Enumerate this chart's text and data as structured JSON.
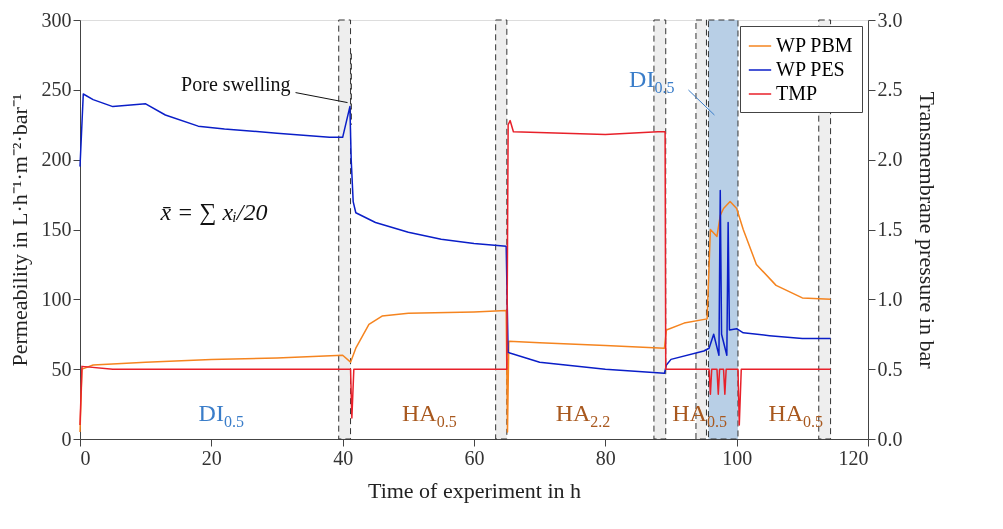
{
  "chart_data": {
    "type": "line",
    "xlabel": "Time of experiment in h",
    "ylabel": "Permeability in L·h⁻¹·m⁻²·bar⁻¹",
    "y2label": "Transmembrane pressure in bar",
    "xlim": [
      0,
      120
    ],
    "xticks": [
      0,
      20,
      40,
      60,
      80,
      100,
      120
    ],
    "ylim": [
      0,
      300
    ],
    "yticks": [
      0,
      50,
      100,
      150,
      200,
      250,
      300
    ],
    "y2lim": [
      0,
      3
    ],
    "y2ticks": [
      {
        "value": 0,
        "label": "0.0"
      },
      {
        "value": 0.5,
        "label": "0.5"
      },
      {
        "value": 1,
        "label": "1.0"
      },
      {
        "value": 1.5,
        "label": "1.5"
      },
      {
        "value": 2,
        "label": "2.0"
      },
      {
        "value": 2.5,
        "label": "2.5"
      },
      {
        "value": 3,
        "label": "3.0"
      }
    ],
    "grid": false,
    "legend": "top right",
    "line_style": "solid",
    "marker": "none",
    "series": [
      {
        "name": "WP PBM",
        "color": "#f5841f",
        "x": [
          0,
          0.3,
          2,
          10,
          20,
          30,
          40,
          41.2,
          42,
          44,
          46,
          50,
          60,
          64.9,
          65.1,
          65.3,
          70,
          80,
          89,
          89.3,
          92,
          95.5,
          96,
          97,
          97.5,
          98,
          99,
          100,
          101,
          103,
          106,
          110,
          114.3
        ],
        "values": [
          5,
          50,
          53,
          55,
          57,
          58,
          60,
          55,
          65,
          82,
          88,
          90,
          91,
          92,
          5,
          70,
          69,
          67,
          65,
          78,
          83,
          86,
          150,
          145,
          160,
          165,
          170,
          165,
          150,
          125,
          110,
          101,
          100
        ]
      },
      {
        "name": "WP PES",
        "color": "#0a1ec8",
        "x": [
          0,
          0.5,
          2,
          5,
          10,
          13,
          18,
          22,
          30,
          38,
          40,
          41.1,
          41.3,
          41.6,
          42,
          45,
          50,
          55,
          60,
          64.9,
          65.2,
          70,
          80,
          89,
          89.3,
          90,
          95,
          95.8,
          96.5,
          97.3,
          97.5,
          97.7,
          98.5,
          98.7,
          98.9,
          100,
          101,
          105,
          110,
          114.3
        ],
        "values": [
          195,
          247,
          243,
          238,
          240,
          232,
          224,
          222,
          219,
          216,
          216,
          238,
          200,
          170,
          162,
          155,
          148,
          143,
          140,
          138,
          62,
          55,
          50,
          47,
          53,
          57,
          63,
          65,
          75,
          60,
          178,
          75,
          60,
          155,
          78,
          79,
          76,
          74,
          72,
          72
        ]
      },
      {
        "name": "TMP",
        "color": "#e8202a",
        "axis": "y2",
        "x": [
          0,
          0.3,
          5,
          40,
          41.2,
          41.4,
          41.7,
          65,
          65.2,
          65.5,
          66,
          80,
          88,
          89.1,
          89.2,
          95.8,
          96,
          96.2,
          97,
          97.2,
          97.4,
          98,
          98.2,
          98.4,
          100.2,
          100.4,
          100.7,
          114.3
        ],
        "values": [
          0.1,
          0.52,
          0.5,
          0.5,
          0.5,
          0.15,
          0.5,
          0.5,
          2.25,
          2.28,
          2.2,
          2.18,
          2.2,
          2.2,
          0.5,
          0.5,
          0.32,
          0.5,
          0.5,
          0.32,
          0.5,
          0.5,
          0.32,
          0.5,
          0.5,
          0.1,
          0.5,
          0.5
        ]
      }
    ],
    "bands": [
      {
        "axis": "x",
        "from": 39.4,
        "to": 41.2,
        "color": "#eeeeee"
      },
      {
        "axis": "x",
        "from": 63.3,
        "to": 65.0,
        "color": "#eeeeee"
      },
      {
        "axis": "x",
        "from": 87.4,
        "to": 89.2,
        "color": "#eeeeee"
      },
      {
        "axis": "x",
        "from": 93.8,
        "to": 95.4,
        "color": "#eeeeee"
      },
      {
        "axis": "x",
        "from": 95.7,
        "to": 100.2,
        "color": "#b8cfe6",
        "label": "DI$_{0.5}$"
      },
      {
        "axis": "x",
        "from": 112.5,
        "to": 114.3,
        "color": "#eeeeee"
      }
    ],
    "ref_lines": [
      {
        "axis": "x",
        "value": 41.3,
        "line_style": "dashed",
        "color": "#000000"
      }
    ],
    "annotations": [
      {
        "text": "Pore swelling",
        "x": 41.2,
        "y": 238
      },
      "x̄ = ∑ xᵢ/20",
      "DI$_{0.5}$",
      "HA$_{0.5}$",
      "HA$_{2.2}$",
      "HA$_{0.5}$",
      "HA$_{0.5}$"
    ]
  }
}
